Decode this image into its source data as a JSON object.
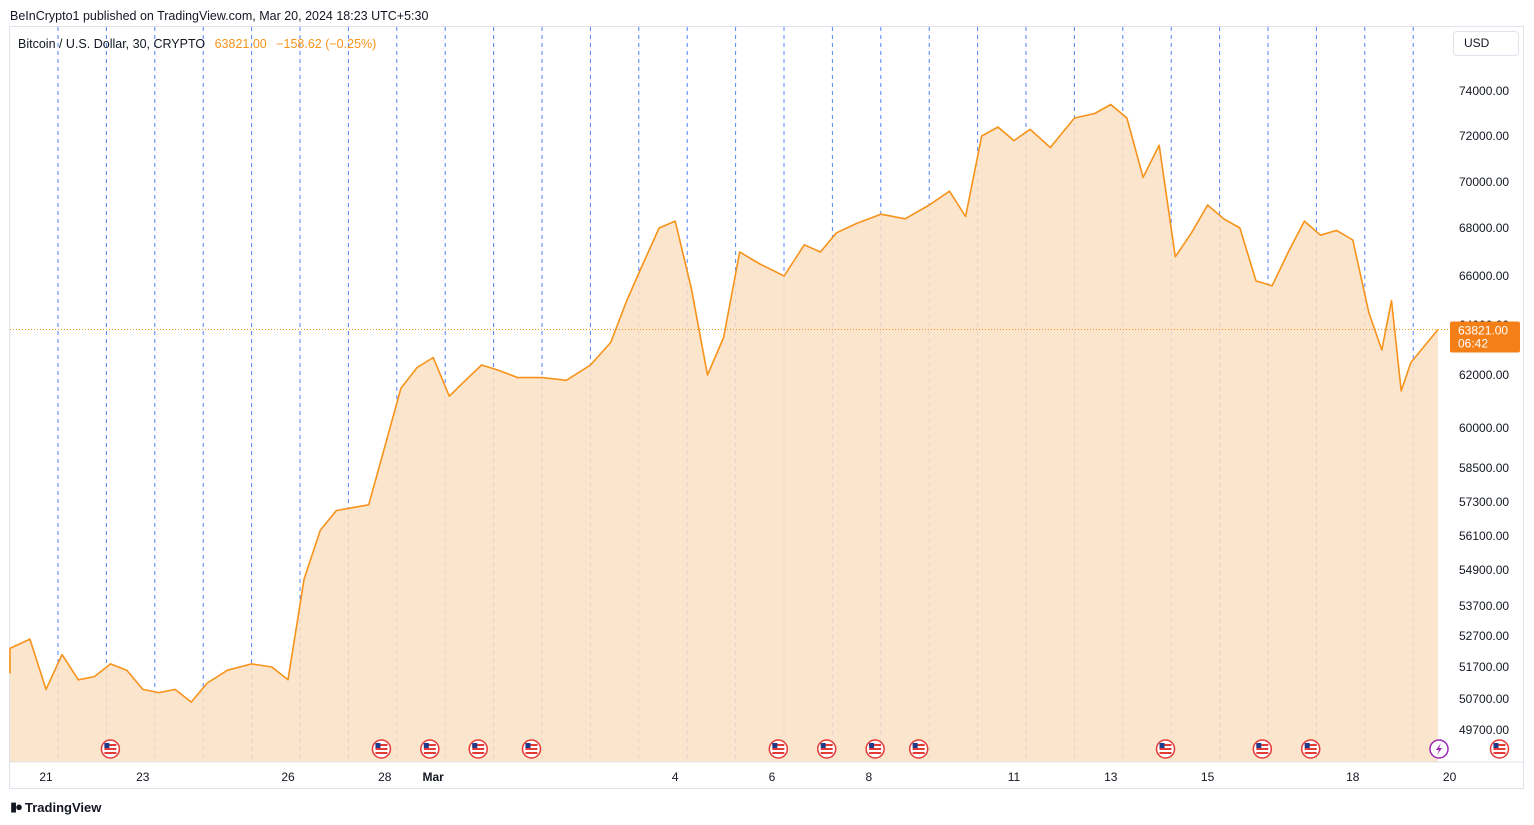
{
  "header": {
    "published_text": "BeInCrypto1 published on TradingView.com, Mar 20, 2024 18:23 UTC+5:30"
  },
  "symbol": {
    "name": "Bitcoin / U.S. Dollar, 30, CRYPTO",
    "price": "63821.00",
    "change": "−158.62 (−0.25%)"
  },
  "currency_button": "USD",
  "footer": {
    "brand": "TradingView"
  },
  "price_tag": {
    "price": "63821.00",
    "countdown": "06:42"
  },
  "colors": {
    "line": "#f7931a",
    "fill": "#fce0c4",
    "session_lines": "#2962ff",
    "price_tag_bg": "#f57f17"
  },
  "chart_data": {
    "type": "area",
    "series_name": "",
    "y_ticks": [
      "74000.00",
      "72000.00",
      "70000.00",
      "68000.00",
      "66000.00",
      "64000.00",
      "62000.00",
      "60000.00",
      "58500.00",
      "57300.00",
      "56100.00",
      "54900.00",
      "53700.00",
      "52700.00",
      "51700.00",
      "50700.00",
      "49700.00"
    ],
    "x_ticks": [
      {
        "label": "21",
        "day": 21
      },
      {
        "label": "23",
        "day": 23
      },
      {
        "label": "26",
        "day": 26
      },
      {
        "label": "28",
        "day": 28
      },
      {
        "label": "Mar",
        "day": 29
      },
      {
        "label": "4",
        "day": 34
      },
      {
        "label": "6",
        "day": 36
      },
      {
        "label": "8",
        "day": 38
      },
      {
        "label": "11",
        "day": 41
      },
      {
        "label": "13",
        "day": 43
      },
      {
        "label": "15",
        "day": 45
      },
      {
        "label": "18",
        "day": 48
      },
      {
        "label": "20",
        "day": 50
      }
    ],
    "event_days": [
      22,
      27.6,
      28.6,
      29.6,
      30.7,
      35.8,
      36.8,
      37.8,
      38.7,
      43.8,
      45.8,
      46.8,
      50.7
    ],
    "points": [
      [
        "Feb 20",
        51500
      ],
      [
        "Feb 20",
        52300
      ],
      [
        "Feb 21",
        52600
      ],
      [
        "Feb 21",
        51000
      ],
      [
        "Feb 21",
        52100
      ],
      [
        "Feb 22",
        51300
      ],
      [
        "Feb 22",
        51400
      ],
      [
        "Feb 22",
        51800
      ],
      [
        "Feb 23",
        51600
      ],
      [
        "Feb 23",
        51000
      ],
      [
        "Feb 23",
        50900
      ],
      [
        "Feb 24",
        51000
      ],
      [
        "Feb 24",
        50600
      ],
      [
        "Feb 24",
        51200
      ],
      [
        "Feb 25",
        51600
      ],
      [
        "Feb 25",
        51800
      ],
      [
        "Feb 26",
        51700
      ],
      [
        "Feb 26",
        51300
      ],
      [
        "Feb 26",
        54600
      ],
      [
        "Feb 27",
        56300
      ],
      [
        "Feb 27",
        57000
      ],
      [
        "Feb 27",
        57100
      ],
      [
        "Feb 28",
        57200
      ],
      [
        "Feb 28",
        59300
      ],
      [
        "Feb 28",
        61500
      ],
      [
        "Feb 29",
        62300
      ],
      [
        "Feb 29",
        62700
      ],
      [
        "Feb 29",
        61200
      ],
      [
        "Mar 1",
        61800
      ],
      [
        "Mar 1",
        62400
      ],
      [
        "Mar 1",
        62200
      ],
      [
        "Mar 2",
        61900
      ],
      [
        "Mar 2",
        61900
      ],
      [
        "Mar 3",
        61800
      ],
      [
        "Mar 3",
        62400
      ],
      [
        "Mar 4",
        63300
      ],
      [
        "Mar 4",
        65000
      ],
      [
        "Mar 4",
        66500
      ],
      [
        "Mar 5",
        68000
      ],
      [
        "Mar 5",
        68300
      ],
      [
        "Mar 5",
        65500
      ],
      [
        "Mar 6",
        62000
      ],
      [
        "Mar 6",
        63500
      ],
      [
        "Mar 6",
        67000
      ],
      [
        "Mar 7",
        66500
      ],
      [
        "Mar 7",
        66000
      ],
      [
        "Mar 8",
        67300
      ],
      [
        "Mar 8",
        67000
      ],
      [
        "Mar 8",
        67800
      ],
      [
        "Mar 9",
        68200
      ],
      [
        "Mar 9",
        68600
      ],
      [
        "Mar 10",
        68400
      ],
      [
        "Mar 10",
        69000
      ],
      [
        "Mar 11",
        69600
      ],
      [
        "Mar 11",
        68500
      ],
      [
        "Mar 11",
        72000
      ],
      [
        "Mar 12",
        72400
      ],
      [
        "Mar 12",
        71800
      ],
      [
        "Mar 12",
        72300
      ],
      [
        "Mar 13",
        71500
      ],
      [
        "Mar 13",
        72800
      ],
      [
        "Mar 14",
        73000
      ],
      [
        "Mar 14",
        73400
      ],
      [
        "Mar 14",
        72800
      ],
      [
        "Mar 15",
        70200
      ],
      [
        "Mar 15",
        71600
      ],
      [
        "Mar 15",
        66800
      ],
      [
        "Mar 16",
        67800
      ],
      [
        "Mar 16",
        69000
      ],
      [
        "Mar 16",
        68400
      ],
      [
        "Mar 17",
        68000
      ],
      [
        "Mar 17",
        65800
      ],
      [
        "Mar 17",
        65600
      ],
      [
        "Mar 18",
        67000
      ],
      [
        "Mar 18",
        68300
      ],
      [
        "Mar 18",
        67700
      ],
      [
        "Mar 19",
        67900
      ],
      [
        "Mar 19",
        67500
      ],
      [
        "Mar 19",
        64500
      ],
      [
        "Mar 20",
        63000
      ],
      [
        "Mar 20",
        65000
      ],
      [
        "Mar 20",
        61400
      ],
      [
        "Mar 20",
        62500
      ],
      [
        "Mar 20",
        63821
      ]
    ]
  }
}
